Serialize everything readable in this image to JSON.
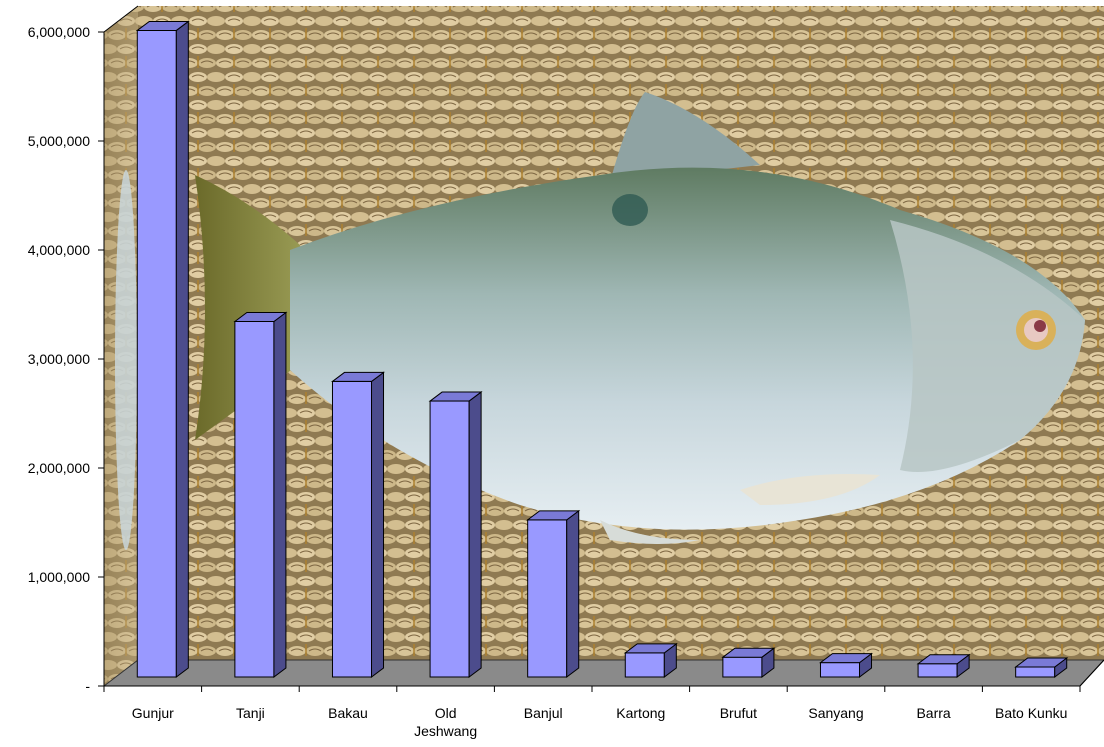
{
  "chart_data": {
    "type": "bar",
    "style": "3d-column",
    "categories": [
      "Gunjur",
      "Tanji",
      "Bakau",
      "Old Jeshwang",
      "Banjul",
      "Kartong",
      "Brufut",
      "Sanyang",
      "Barra",
      "Bato Kunku"
    ],
    "category_lines": [
      [
        "Gunjur"
      ],
      [
        "Tanji"
      ],
      [
        "Bakau"
      ],
      [
        "Old",
        "Jeshwang"
      ],
      [
        "Banjul"
      ],
      [
        "Kartong"
      ],
      [
        "Brufut"
      ],
      [
        "Sanyang"
      ],
      [
        "Barra"
      ],
      [
        "Bato Kunku"
      ]
    ],
    "values": [
      5950000,
      3280000,
      2730000,
      2550000,
      1460000,
      240000,
      200000,
      150000,
      140000,
      110000
    ],
    "ylim": [
      0,
      6000000
    ],
    "yticks": [
      0,
      1000000,
      2000000,
      3000000,
      4000000,
      5000000,
      6000000
    ],
    "ytick_labels": [
      "-",
      "1,000,000",
      "2,000,000",
      "3,000,000",
      "4,000,000",
      "5,000,000",
      "6,000,000"
    ],
    "title": "",
    "xlabel": "",
    "ylabel": "",
    "grid": false,
    "legend": "none",
    "background": "photo of a silvery fish lying on woven rope",
    "colors": {
      "bar_front": "#9999ff",
      "bar_side": "#4c4c8c",
      "bar_top": "#7a7ad6",
      "floor": "#8a8a8a",
      "rope": "#b39a6b",
      "fish_body": "#aebfc4"
    }
  }
}
